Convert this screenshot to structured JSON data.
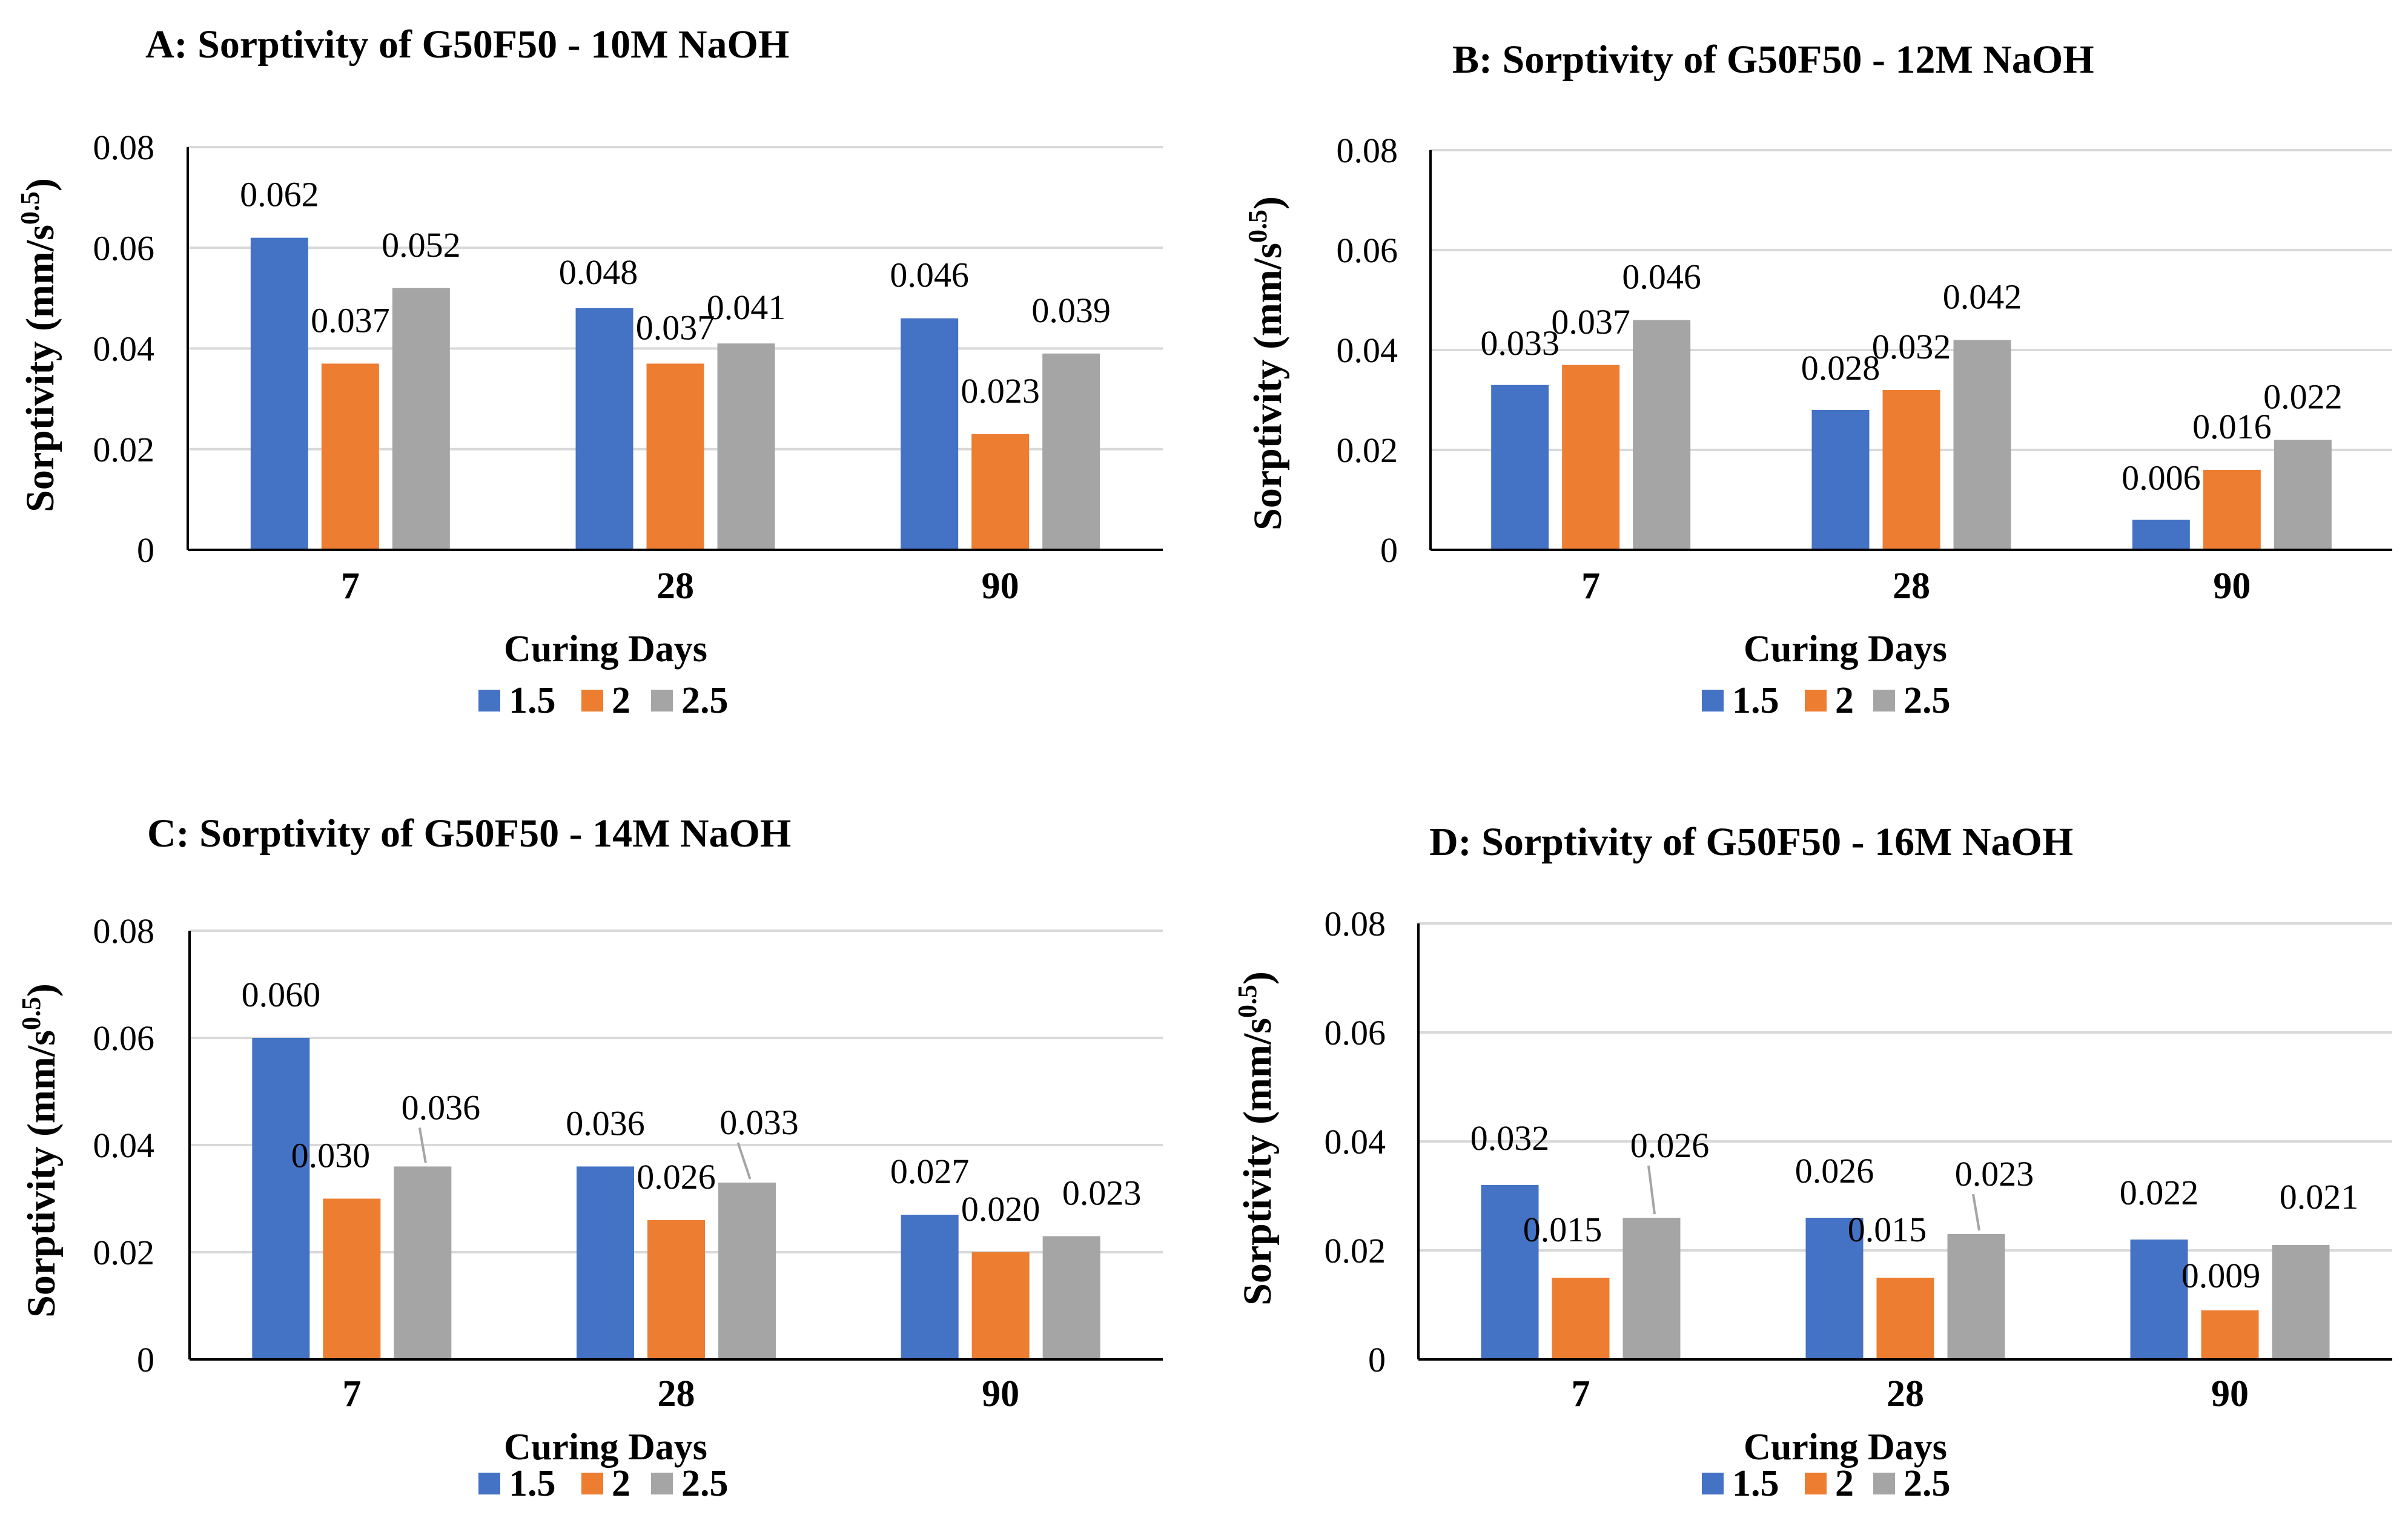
{
  "colors": {
    "s1": "#4472C4",
    "s2": "#ED7D31",
    "s3": "#A5A5A5",
    "grid": "#D9D9D9",
    "axis": "#000000",
    "text": "#000000",
    "leader": "#A5A5A5"
  },
  "chart_data": [
    {
      "type": "bar",
      "title": "A: Sorptivity of G50F50 - 10M NaOH",
      "xlabel": "Curing Days",
      "ylabel": "Sorptivity (mm/s",
      "ylabel_sup": "0.5",
      "ylabel_close": ")",
      "ylim": [
        0,
        0.08
      ],
      "yticks": [
        "0",
        "0.02",
        "0.04",
        "0.06",
        "0.08"
      ],
      "categories": [
        "7",
        "28",
        "90"
      ],
      "series": [
        {
          "name": "1.5",
          "values": [
            0.062,
            0.048,
            0.046
          ],
          "labels": [
            "0.062",
            "0.048",
            "0.046"
          ]
        },
        {
          "name": "2",
          "values": [
            0.037,
            0.037,
            0.023
          ],
          "labels": [
            "0.037",
            "0.037",
            "0.023"
          ]
        },
        {
          "name": "2.5",
          "values": [
            0.052,
            0.041,
            0.039
          ],
          "labels": [
            "0.052",
            "0.041",
            "0.039"
          ]
        }
      ],
      "legend": "bottom"
    },
    {
      "type": "bar",
      "title": "B: Sorptivity of G50F50 - 12M NaOH",
      "xlabel": "Curing Days",
      "ylabel": "Sorptivity (mm/s",
      "ylabel_sup": "0.5",
      "ylabel_close": ")",
      "ylim": [
        0,
        0.08
      ],
      "yticks": [
        "0",
        "0.02",
        "0.04",
        "0.06",
        "0.08"
      ],
      "categories": [
        "7",
        "28",
        "90"
      ],
      "series": [
        {
          "name": "1.5",
          "values": [
            0.033,
            0.028,
            0.006
          ],
          "labels": [
            "0.033",
            "0.028",
            "0.006"
          ]
        },
        {
          "name": "2",
          "values": [
            0.037,
            0.032,
            0.016
          ],
          "labels": [
            "0.037",
            "0.032",
            "0.016"
          ]
        },
        {
          "name": "2.5",
          "values": [
            0.046,
            0.042,
            0.022
          ],
          "labels": [
            "0.046",
            "0.042",
            "0.022"
          ]
        }
      ],
      "legend": "bottom"
    },
    {
      "type": "bar",
      "title": "C: Sorptivity of G50F50 - 14M NaOH",
      "xlabel": "Curing Days",
      "ylabel": "Sorptivity (mm/s",
      "ylabel_sup": "0.5",
      "ylabel_close": ")",
      "ylim": [
        0,
        0.08
      ],
      "yticks": [
        "0",
        "0.02",
        "0.04",
        "0.06",
        "0.08"
      ],
      "categories": [
        "7",
        "28",
        "90"
      ],
      "series": [
        {
          "name": "1.5",
          "values": [
            0.06,
            0.036,
            0.027
          ],
          "labels": [
            "0.060",
            "0.036",
            "0.027"
          ]
        },
        {
          "name": "2",
          "values": [
            0.03,
            0.026,
            0.02
          ],
          "labels": [
            "0.030",
            "0.026",
            "0.020"
          ]
        },
        {
          "name": "2.5",
          "values": [
            0.036,
            0.033,
            0.023
          ],
          "labels": [
            "0.036",
            "0.033",
            "0.023"
          ]
        }
      ],
      "legend": "bottom"
    },
    {
      "type": "bar",
      "title": "D: Sorptivity of G50F50 - 16M NaOH",
      "xlabel": "Curing Days",
      "ylabel": "Sorptivity (mm/s",
      "ylabel_sup": "0.5",
      "ylabel_close": ")",
      "ylim": [
        0,
        0.08
      ],
      "yticks": [
        "0",
        "0.02",
        "0.04",
        "0.06",
        "0.08"
      ],
      "categories": [
        "7",
        "28",
        "90"
      ],
      "series": [
        {
          "name": "1.5",
          "values": [
            0.032,
            0.026,
            0.022
          ],
          "labels": [
            "0.032",
            "0.026",
            "0.022"
          ]
        },
        {
          "name": "2",
          "values": [
            0.015,
            0.015,
            0.009
          ],
          "labels": [
            "0.015",
            "0.015",
            "0.009"
          ]
        },
        {
          "name": "2.5",
          "values": [
            0.026,
            0.023,
            0.021
          ],
          "labels": [
            "0.026",
            "0.023",
            "0.021"
          ]
        }
      ],
      "legend": "bottom"
    }
  ]
}
